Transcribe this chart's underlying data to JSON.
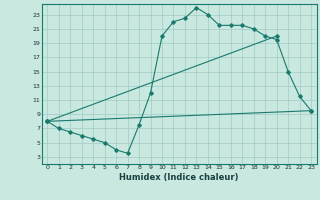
{
  "line1_x": [
    0,
    1,
    2,
    3,
    4,
    5,
    6,
    7,
    8,
    9,
    10,
    11,
    12,
    13,
    14,
    15,
    16,
    17,
    18,
    19,
    20,
    21,
    22,
    23
  ],
  "line1_y": [
    8,
    7,
    6.5,
    6,
    5.5,
    5,
    4,
    3.5,
    7.5,
    12,
    20,
    22,
    22.5,
    24,
    23,
    21.5,
    21.5,
    21.5,
    21,
    20,
    19.5,
    15,
    11.5,
    9.5
  ],
  "line2_x": [
    0,
    23
  ],
  "line2_y": [
    8,
    9.5
  ],
  "line3_x": [
    0,
    20
  ],
  "line3_y": [
    8,
    20
  ],
  "line_color": "#1a7a6e",
  "bg_color": "#c8e8e0",
  "grid_color": "#a0ccc4",
  "xlabel": "Humidex (Indice chaleur)",
  "xlim": [
    -0.5,
    23.5
  ],
  "ylim": [
    2,
    24.5
  ],
  "xticks": [
    0,
    1,
    2,
    3,
    4,
    5,
    6,
    7,
    8,
    9,
    10,
    11,
    12,
    13,
    14,
    15,
    16,
    17,
    18,
    19,
    20,
    21,
    22,
    23
  ],
  "yticks": [
    3,
    5,
    7,
    9,
    11,
    13,
    15,
    17,
    19,
    21,
    23
  ]
}
